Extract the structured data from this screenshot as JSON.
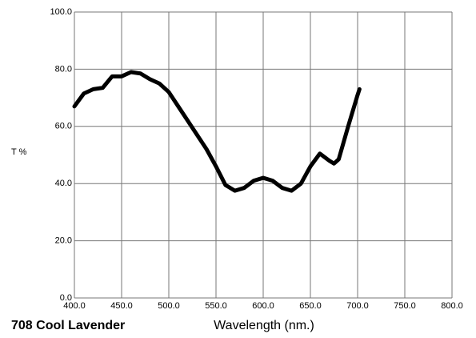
{
  "chart_data": {
    "type": "line",
    "title": "708 Cool Lavender",
    "x_label": "Wavelength (nm.)",
    "y_label": "T %",
    "x": [
      400,
      410,
      420,
      430,
      440,
      450,
      460,
      470,
      480,
      490,
      500,
      510,
      520,
      530,
      540,
      550,
      560,
      570,
      580,
      590,
      600,
      610,
      620,
      630,
      640,
      650,
      660,
      670,
      675,
      680,
      690,
      700,
      702
    ],
    "values": [
      67,
      71.5,
      73,
      73.5,
      77.5,
      77.5,
      79,
      78.5,
      76.5,
      75,
      72,
      67,
      62,
      57,
      52,
      46,
      39.5,
      37.5,
      38.5,
      41,
      42,
      41,
      38.5,
      37.5,
      40,
      46,
      50.5,
      48,
      47,
      48.5,
      60,
      71,
      73
    ],
    "color": "#000000",
    "xlim": [
      400,
      800
    ],
    "ylim": [
      0,
      100
    ],
    "xticks": [
      {
        "value": 400,
        "label": "400.0"
      },
      {
        "value": 450,
        "label": "450.0"
      },
      {
        "value": 500,
        "label": "500.0"
      },
      {
        "value": 550,
        "label": "550.0"
      },
      {
        "value": 600,
        "label": "600.0"
      },
      {
        "value": 650,
        "label": "650.0"
      },
      {
        "value": 700,
        "label": "700.0"
      },
      {
        "value": 750,
        "label": "750.0"
      },
      {
        "value": 800,
        "label": "800.0"
      }
    ],
    "yticks": [
      {
        "value": 0,
        "label": "0.0"
      },
      {
        "value": 20,
        "label": "20.0"
      },
      {
        "value": 40,
        "label": "40.0"
      },
      {
        "value": 60,
        "label": "60.0"
      },
      {
        "value": 80,
        "label": "80.0"
      },
      {
        "value": 100,
        "label": "100.0"
      }
    ],
    "grid": true
  }
}
